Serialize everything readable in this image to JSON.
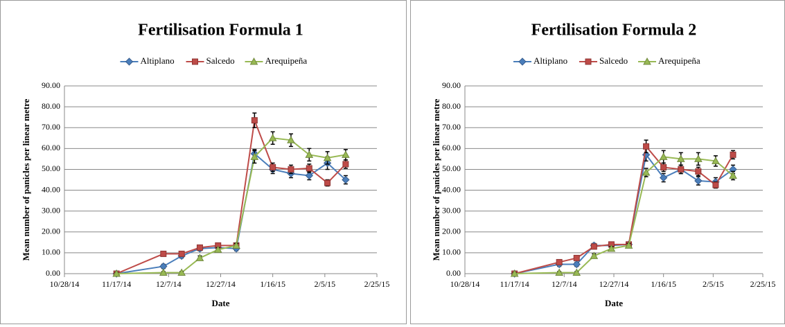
{
  "chart_data": [
    {
      "type": "line",
      "title": "Fertilisation Formula 1",
      "x_label": "Date",
      "y_label": "Mean number of panicles per linear metre",
      "x": [
        "11/17/14",
        "12/5/14",
        "12/12/14",
        "12/19/14",
        "12/26/14",
        "1/2/15",
        "1/9/15",
        "1/16/15",
        "1/23/15",
        "1/30/15",
        "2/6/15",
        "2/13/15"
      ],
      "series": [
        {
          "name": "Altiplano",
          "color": "#4a7ebb",
          "marker": "diamond",
          "values": [
            0,
            3.5,
            8.5,
            12,
            12.5,
            12,
            57.5,
            50,
            48,
            47,
            53,
            45
          ],
          "errors": [
            0.5,
            1,
            1,
            1,
            1,
            1,
            2,
            2,
            2,
            2,
            3,
            2
          ]
        },
        {
          "name": "Salcedo",
          "color": "#be4b48",
          "marker": "square",
          "values": [
            0,
            9.5,
            9.5,
            12.5,
            13.5,
            13.5,
            73.5,
            51,
            50,
            50.5,
            43.5,
            52.5
          ],
          "errors": [
            0.5,
            1,
            1,
            1,
            1,
            1,
            3.5,
            2,
            2,
            2,
            1.5,
            2
          ]
        },
        {
          "name": "Arequipeña",
          "color": "#98b954",
          "marker": "triangle",
          "values": [
            0,
            0.5,
            0.5,
            7.5,
            11.5,
            13.5,
            56,
            65,
            64,
            57,
            55.5,
            57
          ],
          "errors": [
            0.5,
            0.5,
            0.5,
            1,
            1,
            1,
            3,
            3,
            3,
            3,
            3,
            2.5
          ]
        }
      ],
      "xlim": [
        "10/28/14",
        "2/25/15"
      ],
      "xticks": [
        "10/28/14",
        "11/17/14",
        "12/7/14",
        "12/27/14",
        "1/16/15",
        "2/5/15",
        "2/25/15"
      ],
      "ylim": [
        0,
        90
      ],
      "yticks": [
        {
          "value": 0,
          "label": "0.00"
        },
        {
          "value": 10,
          "label": "10.00"
        },
        {
          "value": 20,
          "label": "20.00"
        },
        {
          "value": 30,
          "label": "30.00"
        },
        {
          "value": 40,
          "label": "40.00"
        },
        {
          "value": 50,
          "label": "50.00"
        },
        {
          "value": 60,
          "label": "60.00"
        },
        {
          "value": 70,
          "label": "70.00"
        },
        {
          "value": 80,
          "label": "80.00"
        },
        {
          "value": 90,
          "label": "90.00"
        }
      ],
      "grid": true,
      "legend": "top"
    },
    {
      "type": "line",
      "title": "Fertilisation Formula 2",
      "x_label": "Date",
      "y_label": "Mean number of panicles per linear metre",
      "x": [
        "11/17/14",
        "12/5/14",
        "12/12/14",
        "12/19/14",
        "12/26/14",
        "1/2/15",
        "1/9/15",
        "1/16/15",
        "1/23/15",
        "1/30/15",
        "2/6/15",
        "2/13/15"
      ],
      "series": [
        {
          "name": "Altiplano",
          "color": "#4a7ebb",
          "marker": "diamond",
          "values": [
            0,
            4.5,
            4.5,
            13.5,
            13.5,
            14,
            57,
            46,
            50,
            44.5,
            44,
            50
          ],
          "errors": [
            0.5,
            1,
            1,
            1,
            1,
            1,
            3,
            2,
            2,
            2,
            2,
            2
          ]
        },
        {
          "name": "Salcedo",
          "color": "#be4b48",
          "marker": "square",
          "values": [
            0,
            5.5,
            7.5,
            13,
            14,
            14,
            61,
            51,
            50,
            49,
            42.5,
            57
          ],
          "errors": [
            0.5,
            1,
            1,
            1,
            1,
            1,
            3,
            2,
            2,
            2,
            1.5,
            2
          ]
        },
        {
          "name": "Arequipeña",
          "color": "#98b954",
          "marker": "triangle",
          "values": [
            0,
            0.5,
            0.5,
            8.5,
            12,
            13.5,
            48.5,
            56,
            55,
            55,
            54,
            47
          ],
          "errors": [
            0.5,
            0.5,
            0.5,
            1,
            1,
            1,
            2,
            3,
            3,
            3,
            2.5,
            2
          ]
        }
      ],
      "xlim": [
        "10/28/14",
        "2/25/15"
      ],
      "xticks": [
        "10/28/14",
        "11/17/14",
        "12/7/14",
        "12/27/14",
        "1/16/15",
        "2/5/15",
        "2/25/15"
      ],
      "ylim": [
        0,
        90
      ],
      "yticks": [
        {
          "value": 0,
          "label": "0.00"
        },
        {
          "value": 10,
          "label": "10.00"
        },
        {
          "value": 20,
          "label": "20.00"
        },
        {
          "value": 30,
          "label": "30.00"
        },
        {
          "value": 40,
          "label": "40.00"
        },
        {
          "value": 50,
          "label": "50.00"
        },
        {
          "value": 60,
          "label": "60.00"
        },
        {
          "value": 70,
          "label": "70.00"
        },
        {
          "value": 80,
          "label": "80.00"
        },
        {
          "value": 90,
          "label": "90.00"
        }
      ],
      "grid": true,
      "legend": "top"
    }
  ]
}
